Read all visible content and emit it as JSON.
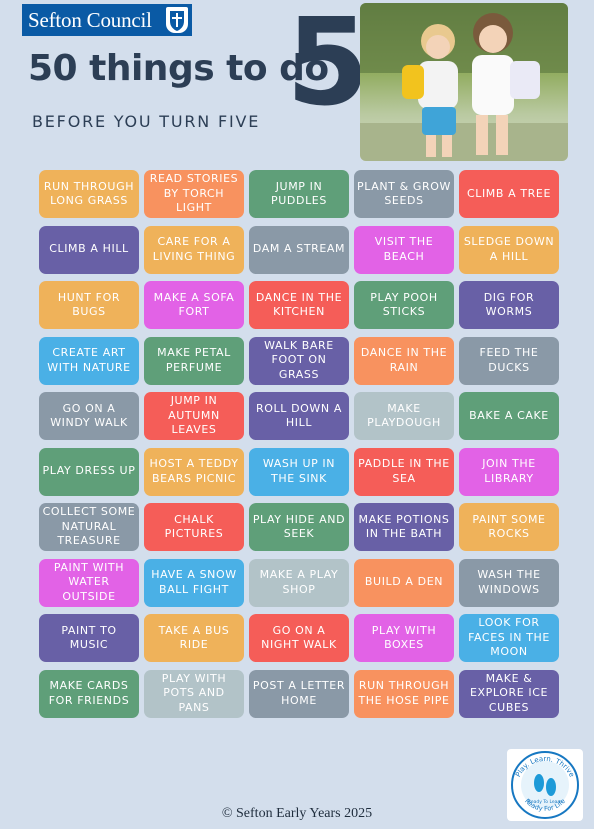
{
  "header": {
    "logo_text": "Sefton Council",
    "title": "50 things to do",
    "title_number": "5",
    "subtitle": "BEFORE YOU TURN FIVE"
  },
  "colors": {
    "orange": "#efb25a",
    "salmon": "#f8925f",
    "green": "#5f9f79",
    "gray": "#8a99a7",
    "red": "#f55d58",
    "purple": "#6860a6",
    "magenta": "#e262e6",
    "blue": "#4ab0e6",
    "light": "#b2c3c8"
  },
  "activities": [
    {
      "label": "RUN THROUGH LONG GRASS",
      "color": "orange"
    },
    {
      "label": "READ STORIES BY TORCH LIGHT",
      "color": "salmon"
    },
    {
      "label": "JUMP IN PUDDLES",
      "color": "green"
    },
    {
      "label": "PLANT & GROW SEEDS",
      "color": "gray"
    },
    {
      "label": "CLIMB A TREE",
      "color": "red"
    },
    {
      "label": "CLIMB A HILL",
      "color": "purple"
    },
    {
      "label": "CARE FOR A LIVING THING",
      "color": "orange"
    },
    {
      "label": "DAM A STREAM",
      "color": "gray"
    },
    {
      "label": "VISIT THE BEACH",
      "color": "magenta"
    },
    {
      "label": "SLEDGE DOWN A HILL",
      "color": "orange"
    },
    {
      "label": "HUNT FOR BUGS",
      "color": "orange"
    },
    {
      "label": "MAKE A SOFA FORT",
      "color": "magenta"
    },
    {
      "label": "DANCE IN THE KITCHEN",
      "color": "red"
    },
    {
      "label": "PLAY POOH STICKS",
      "color": "green"
    },
    {
      "label": "DIG FOR WORMS",
      "color": "purple"
    },
    {
      "label": "CREATE ART WITH NATURE",
      "color": "blue"
    },
    {
      "label": "MAKE PETAL PERFUME",
      "color": "green"
    },
    {
      "label": "WALK BARE FOOT ON GRASS",
      "color": "purple"
    },
    {
      "label": "DANCE IN THE RAIN",
      "color": "salmon"
    },
    {
      "label": "FEED THE DUCKS",
      "color": "gray"
    },
    {
      "label": "GO ON A WINDY WALK",
      "color": "gray"
    },
    {
      "label": "JUMP IN AUTUMN LEAVES",
      "color": "red"
    },
    {
      "label": "ROLL DOWN A HILL",
      "color": "purple"
    },
    {
      "label": "MAKE PLAYDOUGH",
      "color": "light"
    },
    {
      "label": "BAKE A CAKE",
      "color": "green"
    },
    {
      "label": "PLAY DRESS UP",
      "color": "green"
    },
    {
      "label": "HOST A TEDDY BEARS PICNIC",
      "color": "orange"
    },
    {
      "label": "WASH UP IN THE SINK",
      "color": "blue"
    },
    {
      "label": "PADDLE IN THE SEA",
      "color": "red"
    },
    {
      "label": "JOIN THE LIBRARY",
      "color": "magenta"
    },
    {
      "label": "COLLECT SOME NATURAL TREASURE",
      "color": "gray"
    },
    {
      "label": "CHALK PICTURES",
      "color": "red"
    },
    {
      "label": "PLAY HIDE AND SEEK",
      "color": "green"
    },
    {
      "label": "MAKE POTIONS IN THE BATH",
      "color": "purple"
    },
    {
      "label": "PAINT SOME ROCKS",
      "color": "orange"
    },
    {
      "label": "PAINT WITH WATER OUTSIDE",
      "color": "magenta"
    },
    {
      "label": "HAVE A SNOW BALL FIGHT",
      "color": "blue"
    },
    {
      "label": "MAKE A PLAY SHOP",
      "color": "light"
    },
    {
      "label": "BUILD A DEN",
      "color": "salmon"
    },
    {
      "label": "WASH THE WINDOWS",
      "color": "gray"
    },
    {
      "label": "PAINT TO MUSIC",
      "color": "purple"
    },
    {
      "label": "TAKE A BUS RIDE",
      "color": "orange"
    },
    {
      "label": "GO ON A NIGHT WALK",
      "color": "red"
    },
    {
      "label": "PLAY WITH BOXES",
      "color": "magenta"
    },
    {
      "label": "LOOK FOR FACES IN THE MOON",
      "color": "blue"
    },
    {
      "label": "MAKE CARDS FOR FRIENDS",
      "color": "green"
    },
    {
      "label": "PLAY WITH POTS AND PANS",
      "color": "light"
    },
    {
      "label": "POST A LETTER HOME",
      "color": "gray"
    },
    {
      "label": "RUN THROUGH THE HOSE PIPE",
      "color": "salmon"
    },
    {
      "label": "MAKE & EXPLORE ICE CUBES",
      "color": "purple"
    }
  ],
  "badge": {
    "top_text": "Play. Learn. Thrive",
    "bottom_text": "Ready For Life",
    "inner_text": "Ready To Learn"
  },
  "footer": "© Sefton Early Years 2025"
}
